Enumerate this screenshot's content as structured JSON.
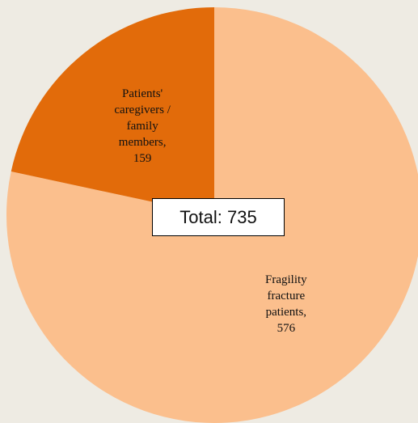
{
  "chart_data": {
    "type": "pie",
    "categories": [
      "Fragility fracture patients,",
      "Patients' caregivers / family members,"
    ],
    "values": [
      576,
      159
    ],
    "colors": [
      "#FBBF8D",
      "#E26B0A"
    ],
    "annotation": "Total: 735"
  }
}
